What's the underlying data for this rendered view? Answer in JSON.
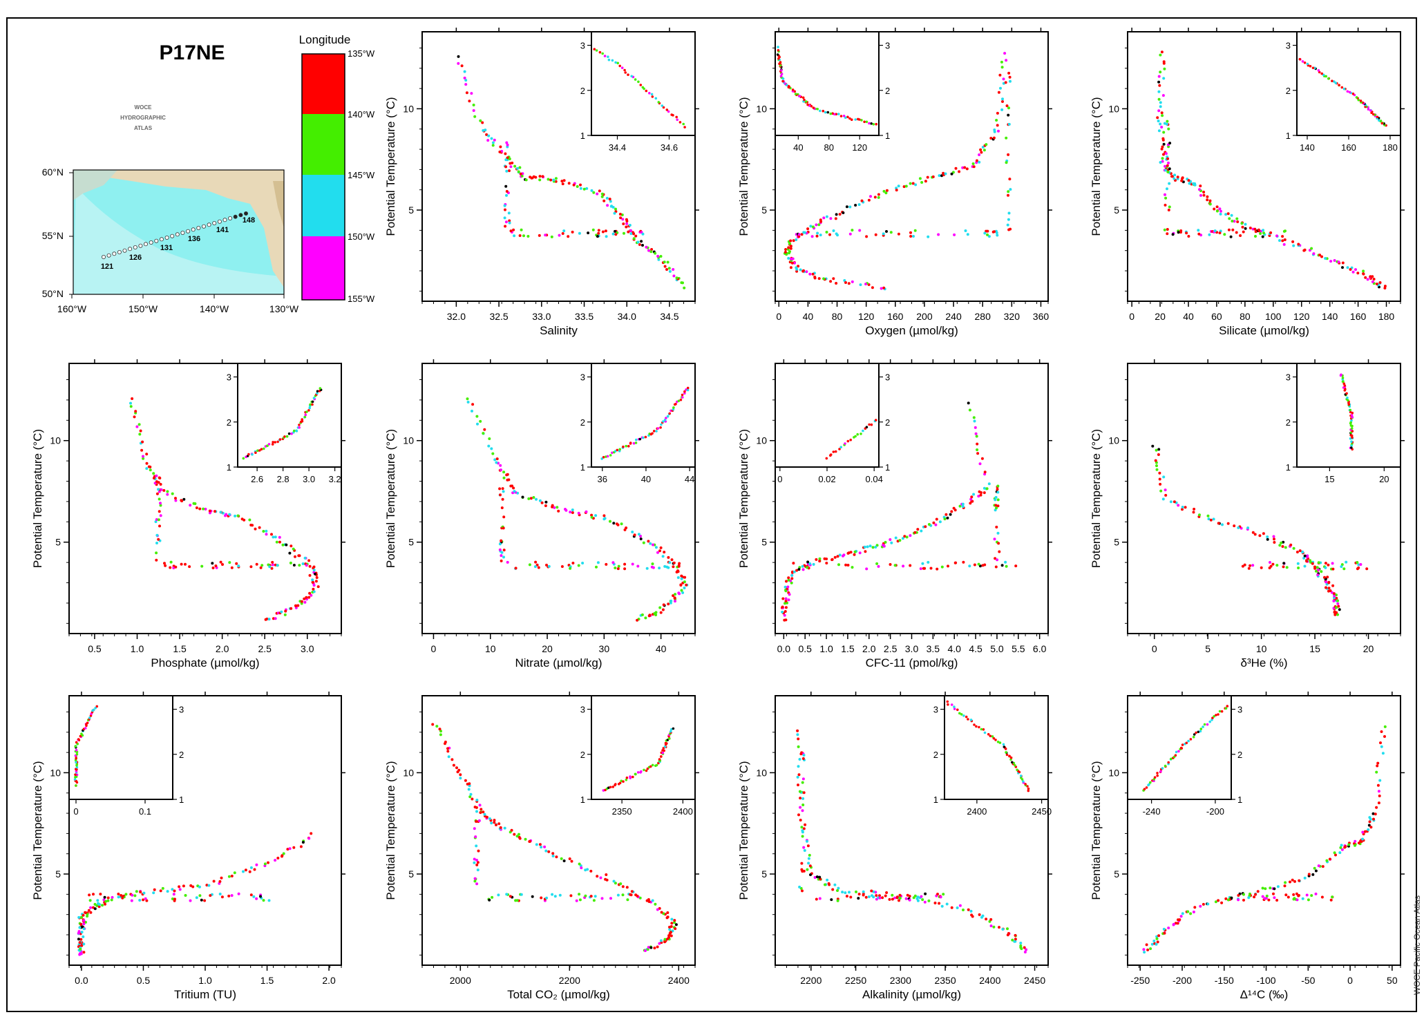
{
  "title": "P17NE",
  "atlas_logo": [
    "WOCE",
    "HYDROGRAPHIC",
    "ATLAS"
  ],
  "credit": "WOCE Pacific Ocean Atlas",
  "map": {
    "lat_labels": [
      "60°N",
      "55°N",
      "50°N"
    ],
    "lon_labels": [
      "160°W",
      "150°W",
      "140°W",
      "130°W"
    ],
    "station_labels": [
      "121",
      "126",
      "131",
      "136",
      "141",
      "148"
    ]
  },
  "colorbar": {
    "title": "Longitude",
    "labels": [
      "135°W",
      "140°W",
      "145°W",
      "150°W",
      "155°W"
    ],
    "colors": [
      "#ff0000",
      "#44ee00",
      "#22ddee",
      "#ff00ff"
    ]
  },
  "chart_data": [
    {
      "type": "scatter",
      "xlabel": "Salinity",
      "ylabel": "Potential Temperature (°C)",
      "xticks": [
        "32.0",
        "32.5",
        "33.0",
        "33.5",
        "34.0",
        "34.5"
      ],
      "yticks": [
        "5",
        "10"
      ],
      "xlim": [
        31.6,
        34.8
      ],
      "ylim": [
        0.5,
        13.8
      ],
      "inset": {
        "xticks": [
          "34.4",
          "34.6"
        ],
        "yticks": [
          "1",
          "2",
          "3"
        ],
        "xlim": [
          34.3,
          34.7
        ],
        "ylim": [
          1,
          3.3
        ]
      }
    },
    {
      "type": "scatter",
      "xlabel": "Oxygen (µmol/kg)",
      "ylabel": "Potential Temperature (°C)",
      "xticks": [
        "0",
        "40",
        "80",
        "120",
        "160",
        "200",
        "240",
        "280",
        "320",
        "360"
      ],
      "yticks": [
        "5",
        "10"
      ],
      "xlim": [
        -5,
        370
      ],
      "ylim": [
        0.5,
        13.8
      ],
      "inset": {
        "xticks": [
          "40",
          "80",
          "120"
        ],
        "yticks": [
          "1",
          "2",
          "3"
        ],
        "xlim": [
          10,
          145
        ],
        "ylim": [
          1,
          3.3
        ]
      }
    },
    {
      "type": "scatter",
      "xlabel": "Silicate (µmol/kg)",
      "ylabel": "Potential Temperature (°C)",
      "xticks": [
        "0",
        "20",
        "40",
        "60",
        "80",
        "100",
        "120",
        "140",
        "160",
        "180"
      ],
      "yticks": [
        "5",
        "10"
      ],
      "xlim": [
        -3,
        190
      ],
      "ylim": [
        0.5,
        13.8
      ],
      "inset": {
        "xticks": [
          "140",
          "160",
          "180"
        ],
        "yticks": [
          "1",
          "2",
          "3"
        ],
        "xlim": [
          135,
          185
        ],
        "ylim": [
          1,
          3.3
        ]
      }
    },
    {
      "type": "scatter",
      "xlabel": "Phosphate (µmol/kg)",
      "ylabel": "Potential Temperature (°C)",
      "xticks": [
        "0.5",
        "1.0",
        "1.5",
        "2.0",
        "2.5",
        "3.0"
      ],
      "yticks": [
        "5",
        "10"
      ],
      "xlim": [
        0.2,
        3.4
      ],
      "ylim": [
        0.5,
        13.8
      ],
      "inset": {
        "xticks": [
          "2.6",
          "2.8",
          "3.0",
          "3.2"
        ],
        "yticks": [
          "1",
          "2",
          "3"
        ],
        "xlim": [
          2.45,
          3.25
        ],
        "ylim": [
          1,
          3.3
        ]
      }
    },
    {
      "type": "scatter",
      "xlabel": "Nitrate (µmol/kg)",
      "ylabel": "Potential Temperature (°C)",
      "xticks": [
        "0",
        "10",
        "20",
        "30",
        "40"
      ],
      "yticks": [
        "5",
        "10"
      ],
      "xlim": [
        -2,
        46
      ],
      "ylim": [
        0.5,
        13.8
      ],
      "inset": {
        "xticks": [
          "36",
          "40",
          "44"
        ],
        "yticks": [
          "1",
          "2",
          "3"
        ],
        "xlim": [
          35,
          44.5
        ],
        "ylim": [
          1,
          3.3
        ]
      }
    },
    {
      "type": "scatter",
      "xlabel": "CFC-11 (pmol/kg)",
      "ylabel": "Potential Temperature (°C)",
      "xticks": [
        "0.0",
        "0.5",
        "1.0",
        "1.5",
        "2.0",
        "2.5",
        "3.0",
        "3.5",
        "4.0",
        "4.5",
        "5.0",
        "5.5",
        "6.0"
      ],
      "yticks": [
        "5",
        "10"
      ],
      "xlim": [
        -0.2,
        6.2
      ],
      "ylim": [
        0.5,
        13.8
      ],
      "inset": {
        "xticks": [
          "0",
          "0.02",
          "0.04"
        ],
        "yticks": [
          "1",
          "2",
          "3"
        ],
        "xlim": [
          -0.002,
          0.042
        ],
        "ylim": [
          1,
          3.3
        ]
      }
    },
    {
      "type": "scatter",
      "xlabel": "δ³He (%)",
      "ylabel": "Potential Temperature (°C)",
      "xticks": [
        "0",
        "5",
        "10",
        "15",
        "20"
      ],
      "yticks": [
        "5",
        "10"
      ],
      "xlim": [
        -2.5,
        23
      ],
      "ylim": [
        0.5,
        13.8
      ],
      "inset": {
        "xticks": [
          "15",
          "20"
        ],
        "yticks": [
          "1",
          "2",
          "3"
        ],
        "xlim": [
          12,
          21.5
        ],
        "ylim": [
          1,
          3.3
        ]
      }
    },
    {
      "type": "scatter",
      "xlabel": "Tritium (TU)",
      "ylabel": "Potential Temperature (°C)",
      "xticks": [
        "0.0",
        "0.5",
        "1.0",
        "1.5",
        "2.0"
      ],
      "yticks": [
        "5",
        "10"
      ],
      "xlim": [
        -0.1,
        2.1
      ],
      "ylim": [
        0.5,
        13.8
      ],
      "inset": {
        "xticks": [
          "0",
          "0.1"
        ],
        "yticks": [
          "1",
          "2",
          "3"
        ],
        "xlim": [
          -0.01,
          0.14
        ],
        "ylim": [
          1,
          3.3
        ]
      }
    },
    {
      "type": "scatter",
      "xlabel": "Total CO₂ (µmol/kg)",
      "ylabel": "Potential Temperature (°C)",
      "xticks": [
        "2000",
        "2200",
        "2400"
      ],
      "yticks": [
        "5",
        "10"
      ],
      "xlim": [
        1930,
        2430
      ],
      "ylim": [
        0.5,
        13.8
      ],
      "inset": {
        "xticks": [
          "2350",
          "2400"
        ],
        "yticks": [
          "1",
          "2",
          "3"
        ],
        "xlim": [
          2325,
          2410
        ],
        "ylim": [
          1,
          3.3
        ]
      }
    },
    {
      "type": "scatter",
      "xlabel": "Alkalinity (µmol/kg)",
      "ylabel": "Potential Temperature (°C)",
      "xticks": [
        "2200",
        "2250",
        "2300",
        "2350",
        "2400",
        "2450"
      ],
      "yticks": [
        "5",
        "10"
      ],
      "xlim": [
        2160,
        2465
      ],
      "ylim": [
        0.5,
        13.8
      ],
      "inset": {
        "xticks": [
          "2400",
          "2450"
        ],
        "yticks": [
          "1",
          "2",
          "3"
        ],
        "xlim": [
          2375,
          2455
        ],
        "ylim": [
          1,
          3.3
        ]
      }
    },
    {
      "type": "scatter",
      "xlabel": "Δ¹⁴C (‰)",
      "ylabel": "Potential Temperature (°C)",
      "xticks": [
        "-250",
        "-200",
        "-150",
        "-100",
        "-50",
        "0",
        "50"
      ],
      "yticks": [
        "5",
        "10"
      ],
      "xlim": [
        -265,
        60
      ],
      "ylim": [
        0.5,
        13.8
      ],
      "inset": {
        "xticks": [
          "-240",
          "-200"
        ],
        "yticks": [
          "1",
          "2",
          "3"
        ],
        "xlim": [
          -255,
          -190
        ],
        "ylim": [
          1,
          3.3
        ]
      }
    }
  ]
}
